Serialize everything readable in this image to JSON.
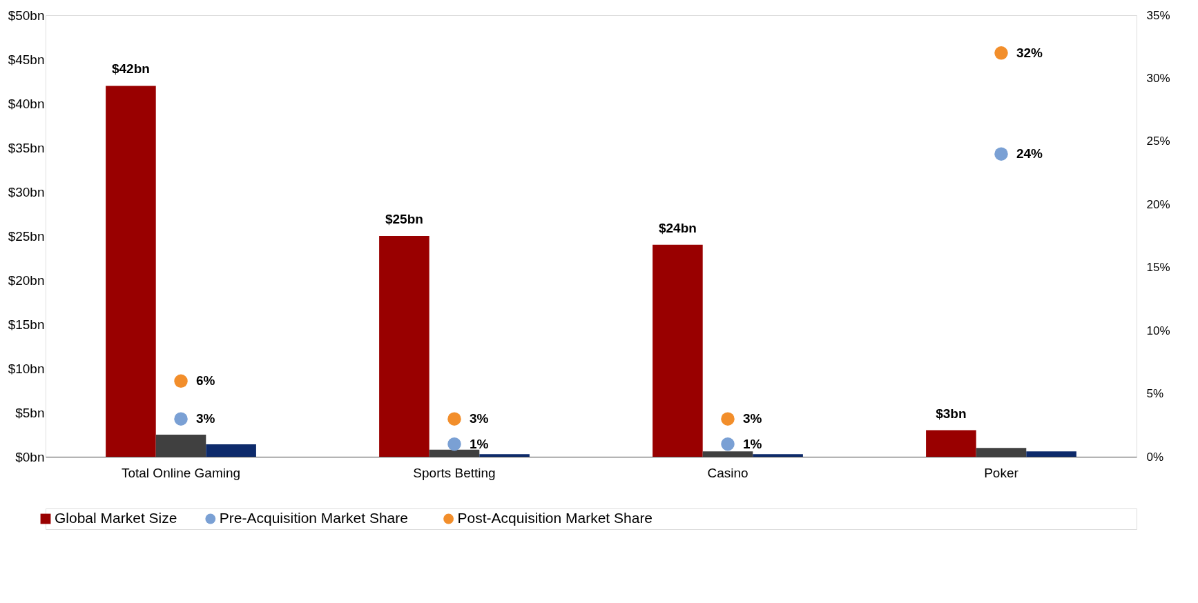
{
  "chart_data": {
    "type": "bar",
    "categories": [
      "Total Online Gaming",
      "Sports Betting",
      "Casino",
      "Poker"
    ],
    "series": [
      {
        "name": "Global Market Size",
        "type": "bar",
        "color": "#990000",
        "values": [
          42,
          25,
          24,
          3
        ],
        "value_labels": [
          "$42bn",
          "$25bn",
          "$24bn",
          "$3bn"
        ]
      },
      {
        "type": "bar",
        "color": "#404040",
        "values": [
          2.5,
          0.8,
          0.6,
          1.0
        ]
      },
      {
        "type": "bar",
        "color": "#0d2a6b",
        "values": [
          1.4,
          0.3,
          0.3,
          0.6
        ]
      },
      {
        "name": "Pre-Acquisition Market Share",
        "type": "scatter",
        "axis": "y2",
        "color": "#7aa0d4",
        "values": [
          3,
          1,
          1,
          24
        ],
        "value_labels": [
          "3%",
          "1%",
          "1%",
          "24%"
        ]
      },
      {
        "name": "Post-Acquisition Market Share",
        "type": "scatter",
        "axis": "y2",
        "color": "#f28e2b",
        "values": [
          6,
          3,
          3,
          32
        ],
        "value_labels": [
          "6%",
          "3%",
          "3%",
          "32%"
        ]
      }
    ],
    "ylim": [
      0,
      50
    ],
    "yticks": [
      {
        "value": 0,
        "label": "$0bn"
      },
      {
        "value": 5,
        "label": "$5bn"
      },
      {
        "value": 10,
        "label": "$10bn"
      },
      {
        "value": 15,
        "label": "$15bn"
      },
      {
        "value": 20,
        "label": "$20bn"
      },
      {
        "value": 25,
        "label": "$25bn"
      },
      {
        "value": 30,
        "label": "$30bn"
      },
      {
        "value": 35,
        "label": "$35bn"
      },
      {
        "value": 40,
        "label": "$40bn"
      },
      {
        "value": 45,
        "label": "$45bn"
      },
      {
        "value": 50,
        "label": "$50bn"
      }
    ],
    "y2lim": [
      0,
      35
    ],
    "y2ticks": [
      {
        "value": 0,
        "label": "0%"
      },
      {
        "value": 5,
        "label": "5%"
      },
      {
        "value": 10,
        "label": "10%"
      },
      {
        "value": 15,
        "label": "15%"
      },
      {
        "value": 20,
        "label": "20%"
      },
      {
        "value": 25,
        "label": "25%"
      },
      {
        "value": 30,
        "label": "30%"
      },
      {
        "value": 35,
        "label": "35%"
      }
    ],
    "marker": "circle",
    "grid": false,
    "legend": "bottom"
  }
}
